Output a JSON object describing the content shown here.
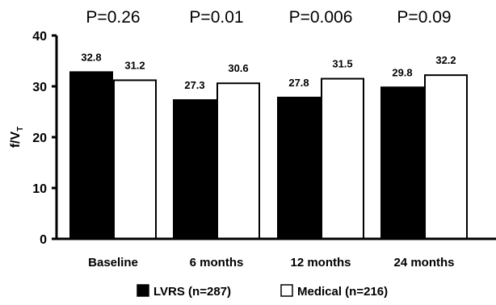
{
  "chart_data": {
    "type": "bar",
    "ylabel": "f/V",
    "ylabel_subscript": "T",
    "ylim": [
      0,
      40
    ],
    "yticks": [
      "0",
      "10",
      "20",
      "30",
      "40"
    ],
    "grid": false,
    "legend_position": "bottom",
    "categories": [
      "Baseline",
      "6 months",
      "12 months",
      "24 months"
    ],
    "p_values": [
      "P=0.26",
      "P=0.01",
      "P=0.006",
      "P=0.09"
    ],
    "series": [
      {
        "name": "LVRS (n=287)",
        "color": "#000000",
        "values": [
          32.8,
          27.3,
          27.8,
          29.8
        ],
        "labels": [
          "32.8",
          "27.3",
          "27.8",
          "29.8"
        ]
      },
      {
        "name": "Medical (n=216)",
        "color": "#ffffff",
        "values": [
          31.2,
          30.6,
          31.5,
          32.2
        ],
        "labels": [
          "31.2",
          "30.6",
          "31.5",
          "32.2"
        ]
      }
    ]
  }
}
